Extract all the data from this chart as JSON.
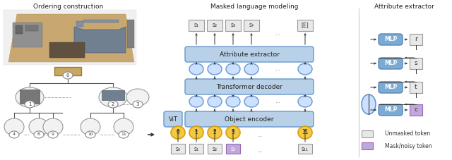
{
  "title_left": "Ordering construction",
  "title_middle": "Masked language modeling",
  "title_right": "Attribute extractor",
  "bg_color": "#ffffff",
  "blue_box_color": "#b8d0e8",
  "blue_box_edge": "#6699cc",
  "mlp_fill": "#7baad4",
  "mlp_edge": "#5588bb",
  "token_fill": "#e8e8e8",
  "token_edge": "#999999",
  "mask_fill": "#c0a8d8",
  "mask_edge": "#9966bb",
  "circle_fill": "#cce0ff",
  "circle_edge": "#6699cc",
  "gold_circle_fill": "#f5c842",
  "gold_circle_edge": "#d4a010",
  "arrow_color": "#333333",
  "text_color": "#222222",
  "dashed_color": "#aaaaaa"
}
